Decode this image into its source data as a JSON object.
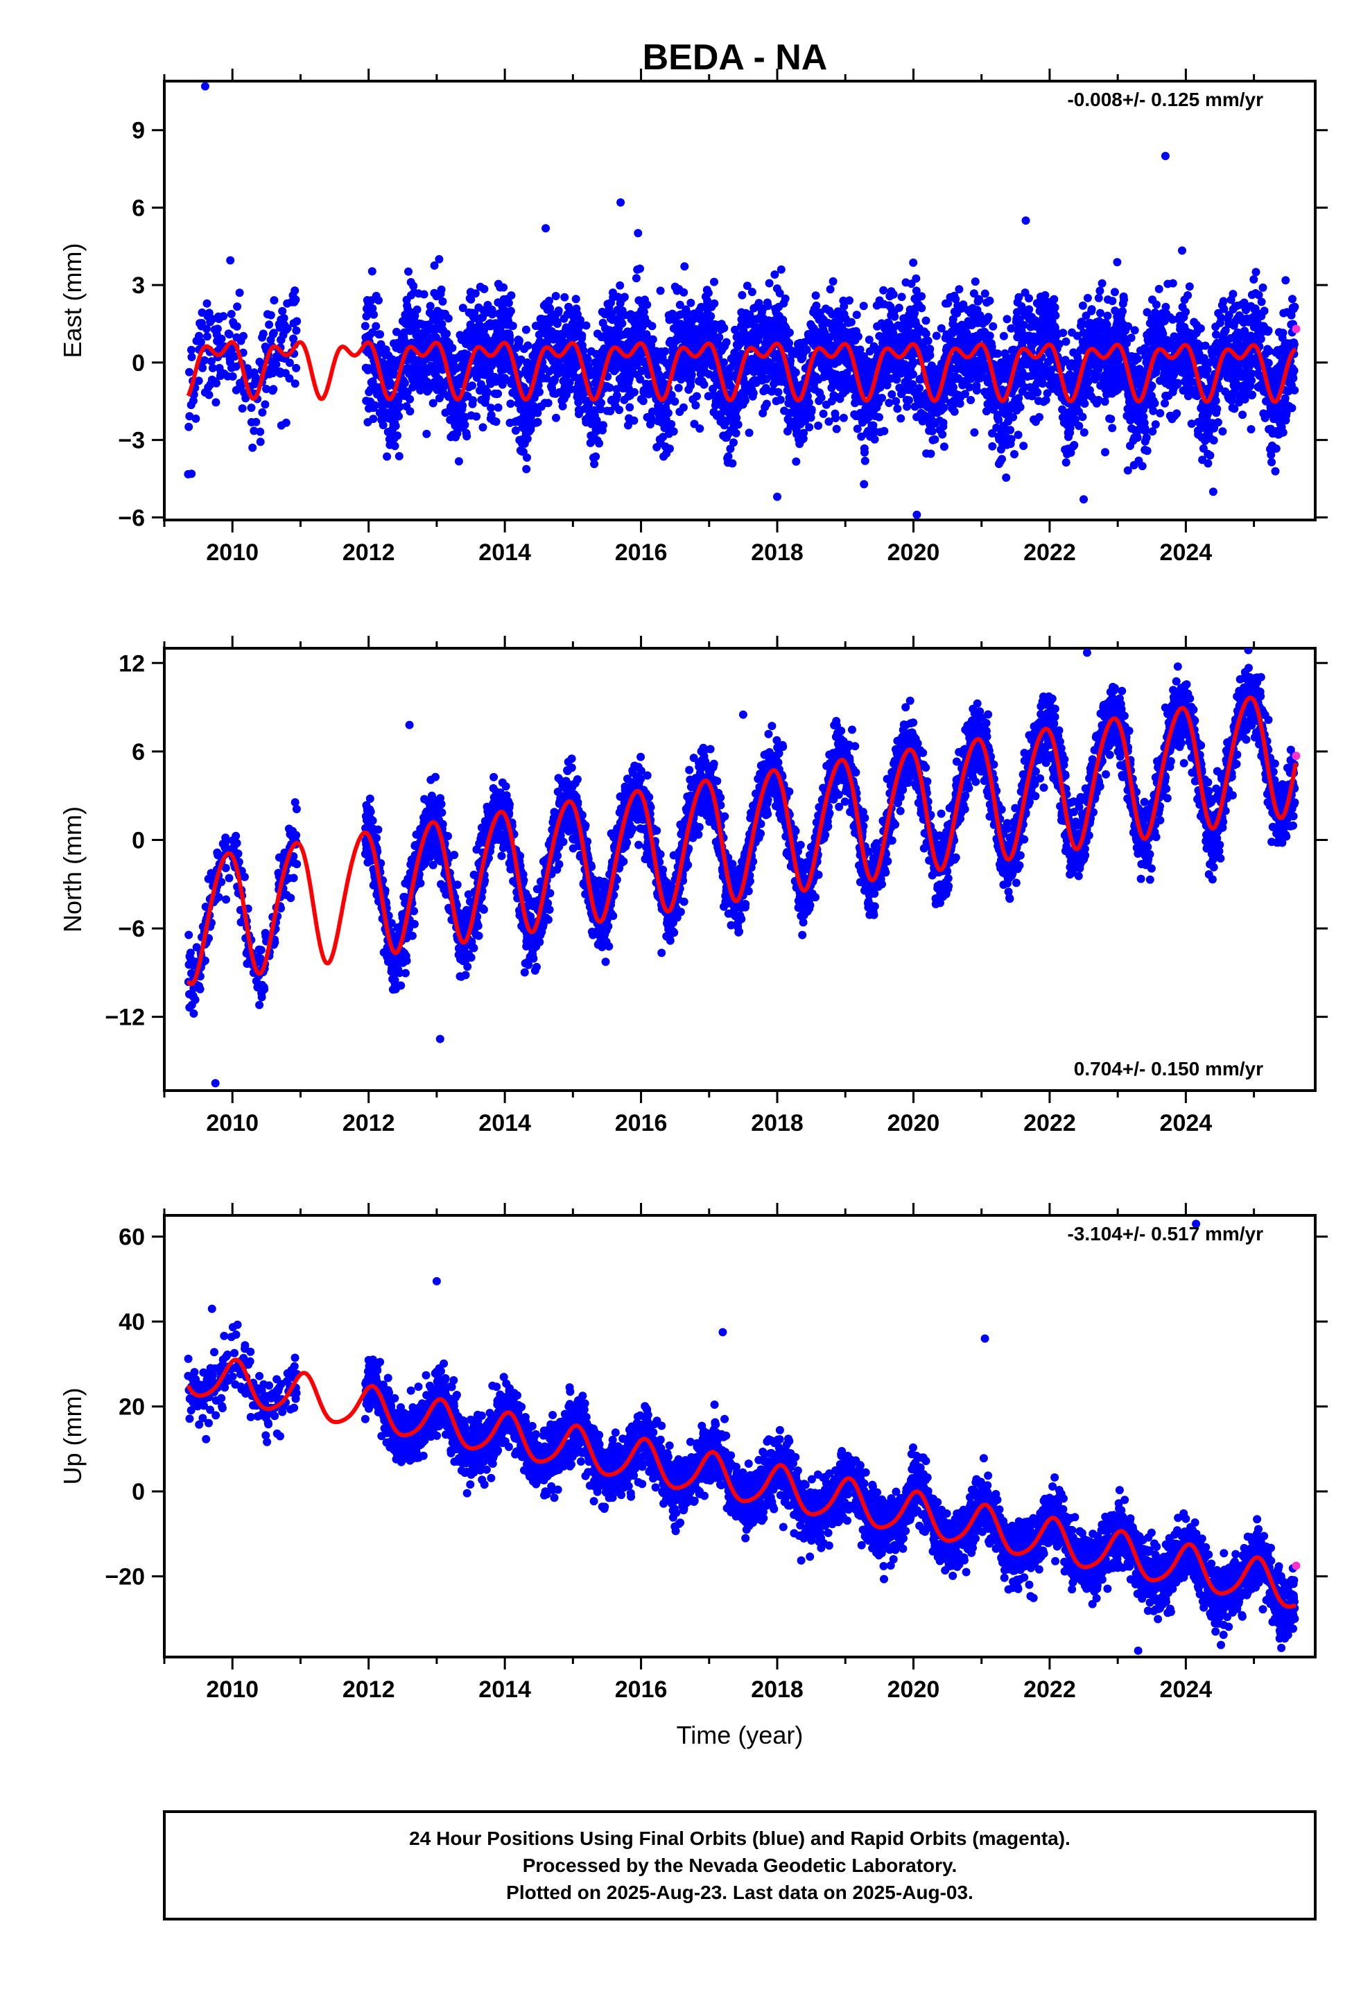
{
  "title": "BEDA - NA",
  "footer": {
    "lines": [
      "24 Hour Positions Using Final Orbits (blue) and Rapid Orbits (magenta).",
      "Processed by the Nevada Geodetic Laboratory.",
      "Plotted on 2025-Aug-23. Last data on 2025-Aug-03."
    ]
  },
  "colors": {
    "final": "#0000ff",
    "rapid": "#ff33cc",
    "model": "#ff0000",
    "frame": "#000000"
  },
  "chart_data": [
    {
      "type": "scatter",
      "ylabel": "East (mm)",
      "xlabel": "",
      "rate_text": "-0.008+/- 0.125 mm/yr",
      "rate_position": "top-right",
      "xlim": [
        2009.0,
        2025.9
      ],
      "ylim": [
        -6.1,
        10.9
      ],
      "yticks": [
        -6,
        -3,
        0,
        3,
        6,
        9
      ],
      "xticks": [
        2010,
        2012,
        2014,
        2016,
        2018,
        2020,
        2022,
        2024
      ],
      "data_span": [
        2009.35,
        2025.6
      ],
      "gap": [
        2010.95,
        2011.95
      ],
      "trend": {
        "ref_year": 2009.5,
        "ref_value": 0.0,
        "rate": -0.008
      },
      "seasonal": {
        "annual_amp": 0.85,
        "annual_phase": 2.7,
        "semiannual_amp": 0.55,
        "semiannual_phase": 0.9
      },
      "scatter_sd": 1.1,
      "outliers": [
        [
          2009.6,
          10.7
        ],
        [
          2020.05,
          -5.9
        ],
        [
          2023.7,
          8.0
        ],
        [
          2015.7,
          6.2
        ],
        [
          2022.5,
          -5.3
        ],
        [
          2018.0,
          -5.2
        ],
        [
          2021.65,
          5.5
        ],
        [
          2014.6,
          5.2
        ]
      ],
      "rapid_points": [
        [
          2025.62,
          1.3
        ]
      ]
    },
    {
      "type": "scatter",
      "ylabel": "North (mm)",
      "xlabel": "",
      "rate_text": "0.704+/- 0.150 mm/yr",
      "rate_position": "bottom-right",
      "xlim": [
        2009.0,
        2025.9
      ],
      "ylim": [
        -17.0,
        13.0
      ],
      "yticks": [
        -12,
        -6,
        0,
        6,
        12
      ],
      "xticks": [
        2010,
        2012,
        2014,
        2016,
        2018,
        2020,
        2022,
        2024
      ],
      "data_span": [
        2009.35,
        2025.6
      ],
      "gap": [
        2010.95,
        2011.95
      ],
      "trend": {
        "ref_year": 2009.5,
        "ref_value": -5.2,
        "rate": 0.704
      },
      "seasonal": {
        "annual_amp": 4.2,
        "annual_phase": 2.1,
        "semiannual_amp": 0.4,
        "semiannual_phase": 0.3
      },
      "scatter_sd": 1.2,
      "outliers": [
        [
          2009.75,
          -16.5
        ],
        [
          2013.05,
          -13.5
        ],
        [
          2022.55,
          12.7
        ],
        [
          2012.6,
          7.8
        ],
        [
          2017.5,
          8.5
        ]
      ],
      "rapid_points": [
        [
          2025.62,
          5.7
        ]
      ]
    },
    {
      "type": "scatter",
      "ylabel": "Up (mm)",
      "xlabel": "Time (year)",
      "rate_text": "-3.104+/- 0.517 mm/yr",
      "rate_position": "top-right",
      "xlim": [
        2009.0,
        2025.9
      ],
      "ylim": [
        -39.0,
        65.0
      ],
      "yticks": [
        -20,
        0,
        20,
        40,
        60
      ],
      "xticks": [
        2010,
        2012,
        2014,
        2016,
        2018,
        2020,
        2022,
        2024
      ],
      "data_span": [
        2009.35,
        2025.6
      ],
      "gap": [
        2010.95,
        2011.95
      ],
      "trend": {
        "ref_year": 2009.5,
        "ref_value": 27.0,
        "rate": -3.104
      },
      "seasonal": {
        "annual_amp": 5.0,
        "annual_phase": 1.3,
        "semiannual_amp": 0.8,
        "semiannual_phase": 0.5
      },
      "scatter_sd": 3.6,
      "outliers": [
        [
          2024.15,
          63.0
        ],
        [
          2013.0,
          49.5
        ],
        [
          2021.05,
          36.0
        ],
        [
          2017.2,
          37.5
        ],
        [
          2009.7,
          43.0
        ],
        [
          2023.3,
          -37.5
        ]
      ],
      "rapid_points": [
        [
          2025.62,
          -17.5
        ]
      ]
    }
  ]
}
